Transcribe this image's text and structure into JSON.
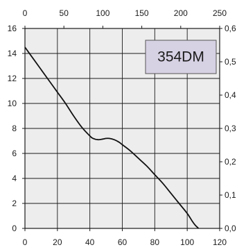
{
  "chart_data": {
    "type": "line",
    "model_label": "354DM",
    "grid": true,
    "plot_background": "#ededed",
    "label_box_color": "#d7d1e4",
    "line_color": "#111111",
    "axes": {
      "bottom": {
        "min": 0,
        "max": 120,
        "ticks": [
          "0",
          "20",
          "40",
          "60",
          "80",
          "100",
          "120"
        ]
      },
      "top": {
        "min": 0,
        "max": 250,
        "ticks": [
          "0",
          "50",
          "100",
          "150",
          "200",
          "250"
        ]
      },
      "left": {
        "min": 0,
        "max": 16,
        "ticks": [
          "0",
          "2",
          "4",
          "6",
          "8",
          "10",
          "12",
          "14",
          "16"
        ]
      },
      "right": {
        "min": 0,
        "max": 0.6,
        "ticks": [
          "0,0",
          "0,1",
          "0,2",
          "0,3",
          "0,4",
          "0,5",
          "0,6"
        ]
      }
    },
    "series": [
      {
        "x": [
          0,
          5,
          10,
          15,
          20,
          25,
          30,
          35,
          40,
          42,
          45,
          48,
          50,
          52,
          55,
          58,
          60,
          65,
          70,
          75,
          80,
          85,
          90,
          95,
          100,
          103,
          105,
          107
        ],
        "y": [
          14.5,
          13.6,
          12.7,
          11.8,
          10.9,
          10.0,
          9.0,
          8.1,
          7.4,
          7.2,
          7.1,
          7.15,
          7.2,
          7.2,
          7.1,
          6.9,
          6.7,
          6.2,
          5.6,
          5.0,
          4.3,
          3.6,
          2.8,
          2.0,
          1.2,
          0.6,
          0.25,
          0.0
        ]
      }
    ]
  }
}
